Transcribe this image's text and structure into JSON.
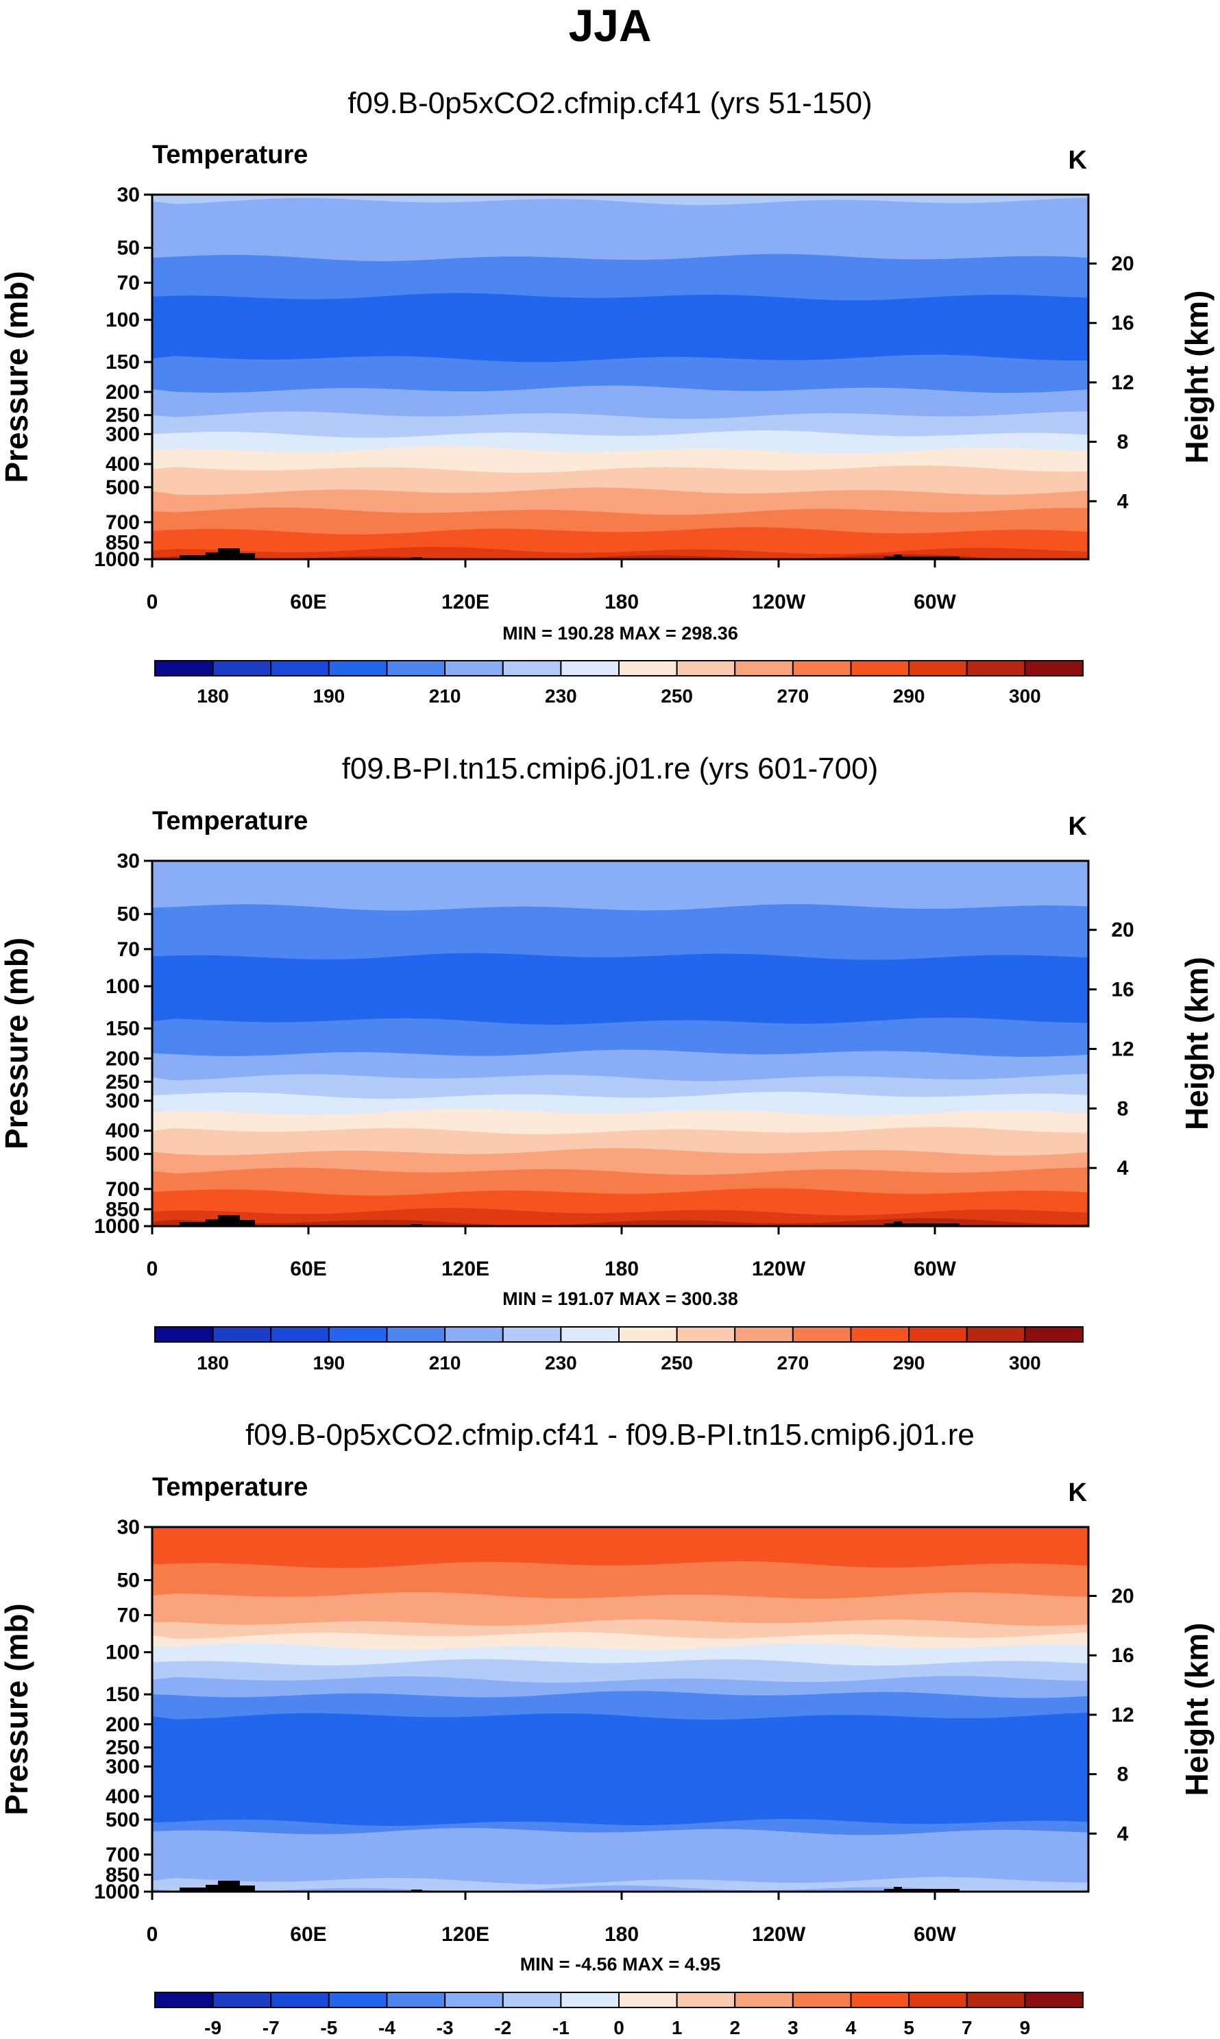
{
  "header": {
    "title": "JJA"
  },
  "colors": {
    "contour_palette": [
      "#08088c",
      "#1c3dc8",
      "#1a48db",
      "#2266ee",
      "#4d86f1",
      "#8aaef6",
      "#b3cbf9",
      "#ddeafc",
      "#fde9d8",
      "#fbcbb0",
      "#f9a47d",
      "#f77c4c",
      "#f55420",
      "#e03a10",
      "#b82810",
      "#8b0d0d"
    ]
  },
  "chart_data": [
    {
      "type": "contour",
      "name": "control",
      "title": "f09.B-0p5xCO2.cfmip.cf41 (yrs 51-150)",
      "variable": "Temperature",
      "units": "K",
      "ylabel": "Pressure (mb)",
      "ylabel_right": "Height (km)",
      "yticks": [
        "30",
        "50",
        "70",
        "100",
        "150",
        "200",
        "250",
        "300",
        "400",
        "500",
        "700",
        "850",
        "1000"
      ],
      "height_ticks": [
        "20",
        "16",
        "12",
        "8",
        "4"
      ],
      "xticks": [
        "0",
        "60E",
        "120E",
        "180",
        "120W",
        "60W"
      ],
      "min_max_text": "MIN = 190.28   MAX = 298.36",
      "min": 190.28,
      "max": 298.36,
      "colorbar_labels": [
        "180",
        "190",
        "210",
        "230",
        "250",
        "270",
        "290",
        "300"
      ],
      "bands": [
        {
          "top_hpa": 30,
          "color": "#b3cbf9"
        },
        {
          "top_hpa": 32,
          "color": "#8aaef6"
        },
        {
          "top_hpa": 55,
          "color": "#4d86f1"
        },
        {
          "top_hpa": 80,
          "color": "#2266ee"
        },
        {
          "top_hpa": 145,
          "color": "#4d86f1"
        },
        {
          "top_hpa": 195,
          "color": "#8aaef6"
        },
        {
          "top_hpa": 250,
          "color": "#b3cbf9"
        },
        {
          "top_hpa": 300,
          "color": "#ddeafc"
        },
        {
          "top_hpa": 350,
          "color": "#fde9d8"
        },
        {
          "top_hpa": 420,
          "color": "#fbcbb0"
        },
        {
          "top_hpa": 520,
          "color": "#f9a47d"
        },
        {
          "top_hpa": 630,
          "color": "#f77c4c"
        },
        {
          "top_hpa": 760,
          "color": "#f55420"
        },
        {
          "top_hpa": 920,
          "color": "#e03a10"
        },
        {
          "top_hpa": 985,
          "color": "#b82810"
        }
      ]
    },
    {
      "type": "contour",
      "name": "experiment",
      "title": "f09.B-PI.tn15.cmip6.j01.re (yrs 601-700)",
      "variable": "Temperature",
      "units": "K",
      "ylabel": "Pressure (mb)",
      "ylabel_right": "Height (km)",
      "yticks": [
        "30",
        "50",
        "70",
        "100",
        "150",
        "200",
        "250",
        "300",
        "400",
        "500",
        "700",
        "850",
        "1000"
      ],
      "height_ticks": [
        "20",
        "16",
        "12",
        "8",
        "4"
      ],
      "xticks": [
        "0",
        "60E",
        "120E",
        "180",
        "120W",
        "60W"
      ],
      "min_max_text": "MIN = 191.07   MAX = 300.38",
      "min": 191.07,
      "max": 300.38,
      "colorbar_labels": [
        "180",
        "190",
        "210",
        "230",
        "250",
        "270",
        "290",
        "300"
      ],
      "bands": [
        {
          "top_hpa": 30,
          "color": "#8aaef6"
        },
        {
          "top_hpa": 47,
          "color": "#4d86f1"
        },
        {
          "top_hpa": 75,
          "color": "#2266ee"
        },
        {
          "top_hpa": 140,
          "color": "#4d86f1"
        },
        {
          "top_hpa": 190,
          "color": "#8aaef6"
        },
        {
          "top_hpa": 240,
          "color": "#b3cbf9"
        },
        {
          "top_hpa": 285,
          "color": "#ddeafc"
        },
        {
          "top_hpa": 335,
          "color": "#fde9d8"
        },
        {
          "top_hpa": 400,
          "color": "#fbcbb0"
        },
        {
          "top_hpa": 490,
          "color": "#f9a47d"
        },
        {
          "top_hpa": 590,
          "color": "#f77c4c"
        },
        {
          "top_hpa": 720,
          "color": "#f55420"
        },
        {
          "top_hpa": 870,
          "color": "#e03a10"
        },
        {
          "top_hpa": 960,
          "color": "#b82810"
        }
      ]
    },
    {
      "type": "contour",
      "name": "difference",
      "title": "f09.B-0p5xCO2.cfmip.cf41 - f09.B-PI.tn15.cmip6.j01.re",
      "variable": "Temperature",
      "units": "K",
      "ylabel": "Pressure (mb)",
      "ylabel_right": "Height (km)",
      "yticks": [
        "30",
        "50",
        "70",
        "100",
        "150",
        "200",
        "250",
        "300",
        "400",
        "500",
        "700",
        "850",
        "1000"
      ],
      "height_ticks": [
        "20",
        "16",
        "12",
        "8",
        "4"
      ],
      "xticks": [
        "0",
        "60E",
        "120E",
        "180",
        "120W",
        "60W"
      ],
      "min_max_text": "MIN =  -4.56   MAX =   4.95",
      "min": -4.56,
      "max": 4.95,
      "colorbar_labels": [
        "-9",
        "-7",
        "-5",
        "-4",
        "-3",
        "-2",
        "-1",
        "0",
        "1",
        "2",
        "3",
        "4",
        "5",
        "7",
        "9"
      ],
      "bands": [
        {
          "top_hpa": 30,
          "color": "#f55420"
        },
        {
          "top_hpa": 43,
          "color": "#f77c4c"
        },
        {
          "top_hpa": 58,
          "color": "#f9a47d"
        },
        {
          "top_hpa": 75,
          "color": "#fbcbb0"
        },
        {
          "top_hpa": 85,
          "color": "#fde9d8"
        },
        {
          "top_hpa": 95,
          "color": "#ddeafc"
        },
        {
          "top_hpa": 110,
          "color": "#b3cbf9"
        },
        {
          "top_hpa": 130,
          "color": "#8aaef6"
        },
        {
          "top_hpa": 150,
          "color": "#4d86f1"
        },
        {
          "top_hpa": 185,
          "color": "#2266ee"
        },
        {
          "top_hpa": 515,
          "color": "#4d86f1"
        },
        {
          "top_hpa": 560,
          "color": "#8aaef6"
        },
        {
          "top_hpa": 900,
          "color": "#b3cbf9"
        },
        {
          "top_hpa": 975,
          "color": "#8aaef6"
        }
      ]
    }
  ]
}
